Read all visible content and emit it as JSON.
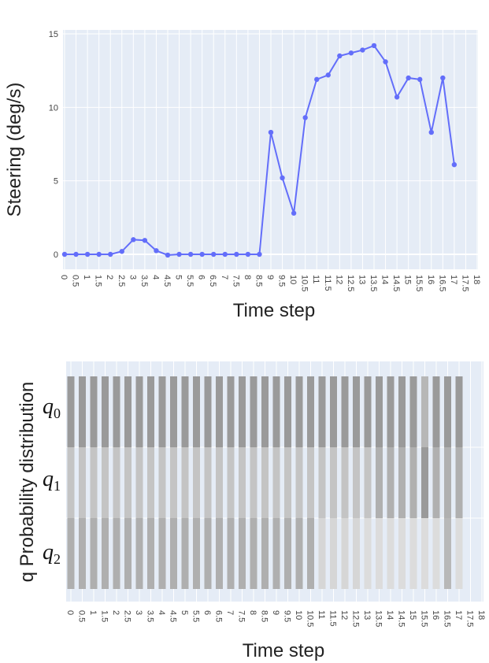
{
  "chart_data": [
    {
      "type": "line",
      "xlabel": "Time step",
      "ylabel": "Steering (deg/s)",
      "ylim": [
        -1,
        15
      ],
      "yticks": [
        0,
        5,
        10,
        15
      ],
      "xlim": [
        0,
        18
      ],
      "xtick_labels": [
        "0",
        "0.5",
        "1",
        "1.5",
        "2",
        "2.5",
        "3",
        "3.5",
        "4",
        "4.5",
        "5",
        "5.5",
        "6",
        "6.5",
        "7",
        "7.5",
        "8",
        "8.5",
        "9",
        "9.5",
        "10",
        "10.5",
        "11",
        "11.5",
        "12",
        "12.5",
        "13",
        "13.5",
        "14",
        "14.5",
        "15",
        "15.5",
        "16",
        "16.5",
        "17",
        "17.5",
        "18"
      ],
      "grid": true,
      "color": "#636efa",
      "x": [
        0,
        0.5,
        1,
        1.5,
        2,
        2.5,
        3,
        3.5,
        4,
        4.5,
        5,
        5.5,
        6,
        6.5,
        7,
        7.5,
        8,
        8.5,
        9,
        9.5,
        10,
        10.5,
        11,
        11.5,
        12,
        12.5,
        13,
        13.5,
        14,
        14.5,
        15,
        15.5,
        16,
        16.5,
        17
      ],
      "y": [
        0,
        0,
        0,
        0,
        0,
        0.2,
        1.0,
        0.95,
        0.25,
        -0.05,
        0,
        0,
        0,
        0,
        0,
        0,
        0,
        0,
        8.3,
        5.2,
        2.8,
        9.3,
        11.9,
        12.2,
        13.5,
        13.7,
        13.9,
        14.2,
        13.1,
        10.7,
        12.0,
        11.9,
        8.3,
        12.0,
        6.1
      ]
    },
    {
      "type": "bar",
      "stacked": true,
      "xlabel": "Time step",
      "ylabel": "q Probability distribution",
      "xlim": [
        0,
        18
      ],
      "xtick_labels": [
        "0",
        "0.5",
        "1",
        "1.5",
        "2",
        "2.5",
        "3",
        "3.5",
        "4",
        "4.5",
        "5",
        "5.5",
        "6",
        "6.5",
        "7",
        "7.5",
        "8",
        "8.5",
        "9",
        "9.5",
        "10",
        "10.5",
        "11",
        "11.5",
        "12",
        "12.5",
        "13",
        "13.5",
        "14",
        "14.5",
        "15",
        "15.5",
        "16",
        "16.5",
        "17",
        "17.5",
        "18"
      ],
      "grid": true,
      "state_labels": [
        {
          "base": "q",
          "sub": "0"
        },
        {
          "base": "q",
          "sub": "1"
        },
        {
          "base": "q",
          "sub": "2"
        }
      ],
      "x": [
        0,
        0.5,
        1,
        1.5,
        2,
        2.5,
        3,
        3.5,
        4,
        4.5,
        5,
        5.5,
        6,
        6.5,
        7,
        7.5,
        8,
        8.5,
        9,
        9.5,
        10,
        10.5,
        11,
        11.5,
        12,
        12.5,
        13,
        13.5,
        14,
        14.5,
        15,
        15.5,
        16,
        16.5,
        17
      ],
      "series": [
        {
          "values": [
            0.333,
            0.333,
            0.333,
            0.333,
            0.333,
            0.333,
            0.333,
            0.333,
            0.333,
            0.333,
            0.333,
            0.333,
            0.333,
            0.333,
            0.333,
            0.333,
            0.333,
            0.333,
            0.333,
            0.333,
            0.333,
            0.333,
            0.333,
            0.333,
            0.333,
            0.333,
            0.333,
            0.333,
            0.333,
            0.333,
            0.333,
            0.333,
            0.333,
            0.333,
            0.333
          ],
          "colors": [
            "#9a9a9a",
            "#9a9a9a",
            "#9a9a9a",
            "#9a9a9a",
            "#9a9a9a",
            "#9a9a9a",
            "#9a9a9a",
            "#9a9a9a",
            "#9a9a9a",
            "#9a9a9a",
            "#9a9a9a",
            "#9a9a9a",
            "#9a9a9a",
            "#9a9a9a",
            "#9a9a9a",
            "#9a9a9a",
            "#9a9a9a",
            "#9a9a9a",
            "#9a9a9a",
            "#9a9a9a",
            "#9a9a9a",
            "#9a9a9a",
            "#9a9a9a",
            "#9a9a9a",
            "#9a9a9a",
            "#9a9a9a",
            "#9a9a9a",
            "#9a9a9a",
            "#9a9a9a",
            "#9a9a9a",
            "#9a9a9a",
            "#b7b7b7",
            "#9a9a9a",
            "#9a9a9a",
            "#9a9a9a"
          ]
        },
        {
          "values": [
            0.333,
            0.333,
            0.333,
            0.333,
            0.333,
            0.333,
            0.333,
            0.333,
            0.333,
            0.333,
            0.333,
            0.333,
            0.333,
            0.333,
            0.333,
            0.333,
            0.333,
            0.333,
            0.333,
            0.333,
            0.333,
            0.333,
            0.333,
            0.333,
            0.333,
            0.333,
            0.333,
            0.333,
            0.333,
            0.333,
            0.333,
            0.333,
            0.333,
            0.333,
            0.333
          ],
          "colors": [
            "#c4c4c4",
            "#c4c4c4",
            "#c4c4c4",
            "#c4c4c4",
            "#c4c4c4",
            "#c4c4c4",
            "#c4c4c4",
            "#c4c4c4",
            "#c4c4c4",
            "#c4c4c4",
            "#c4c4c4",
            "#c4c4c4",
            "#c4c4c4",
            "#c4c4c4",
            "#c4c4c4",
            "#c4c4c4",
            "#c4c4c4",
            "#c4c4c4",
            "#c4c4c4",
            "#c4c4c4",
            "#c4c4c4",
            "#c4c4c4",
            "#c4c4c4",
            "#c4c4c4",
            "#c4c4c4",
            "#c4c4c4",
            "#c4c4c4",
            "#b0b0b0",
            "#b0b0b0",
            "#b0b0b0",
            "#b0b0b0",
            "#9a9a9a",
            "#b0b0b0",
            "#b0b0b0",
            "#b0b0b0"
          ]
        },
        {
          "values": [
            0.333,
            0.333,
            0.333,
            0.333,
            0.333,
            0.333,
            0.333,
            0.333,
            0.333,
            0.333,
            0.333,
            0.333,
            0.333,
            0.333,
            0.333,
            0.333,
            0.333,
            0.333,
            0.333,
            0.333,
            0.333,
            0.333,
            0.333,
            0.333,
            0.333,
            0.333,
            0.333,
            0.333,
            0.333,
            0.333,
            0.333,
            0.333,
            0.333,
            0.333,
            0.333
          ],
          "colors": [
            "#afafaf",
            "#afafaf",
            "#afafaf",
            "#afafaf",
            "#afafaf",
            "#afafaf",
            "#afafaf",
            "#afafaf",
            "#afafaf",
            "#afafaf",
            "#afafaf",
            "#afafaf",
            "#afafaf",
            "#afafaf",
            "#afafaf",
            "#afafaf",
            "#afafaf",
            "#afafaf",
            "#afafaf",
            "#afafaf",
            "#afafaf",
            "#afafaf",
            "#d6d6d6",
            "#d6d6d6",
            "#d6d6d6",
            "#d6d6d6",
            "#dcdcdc",
            "#dcdcdc",
            "#dcdcdc",
            "#dcdcdc",
            "#dcdcdc",
            "#dcdcdc",
            "#dcdcdc",
            "#b8b8b8",
            "#dcdcdc"
          ]
        }
      ]
    }
  ]
}
